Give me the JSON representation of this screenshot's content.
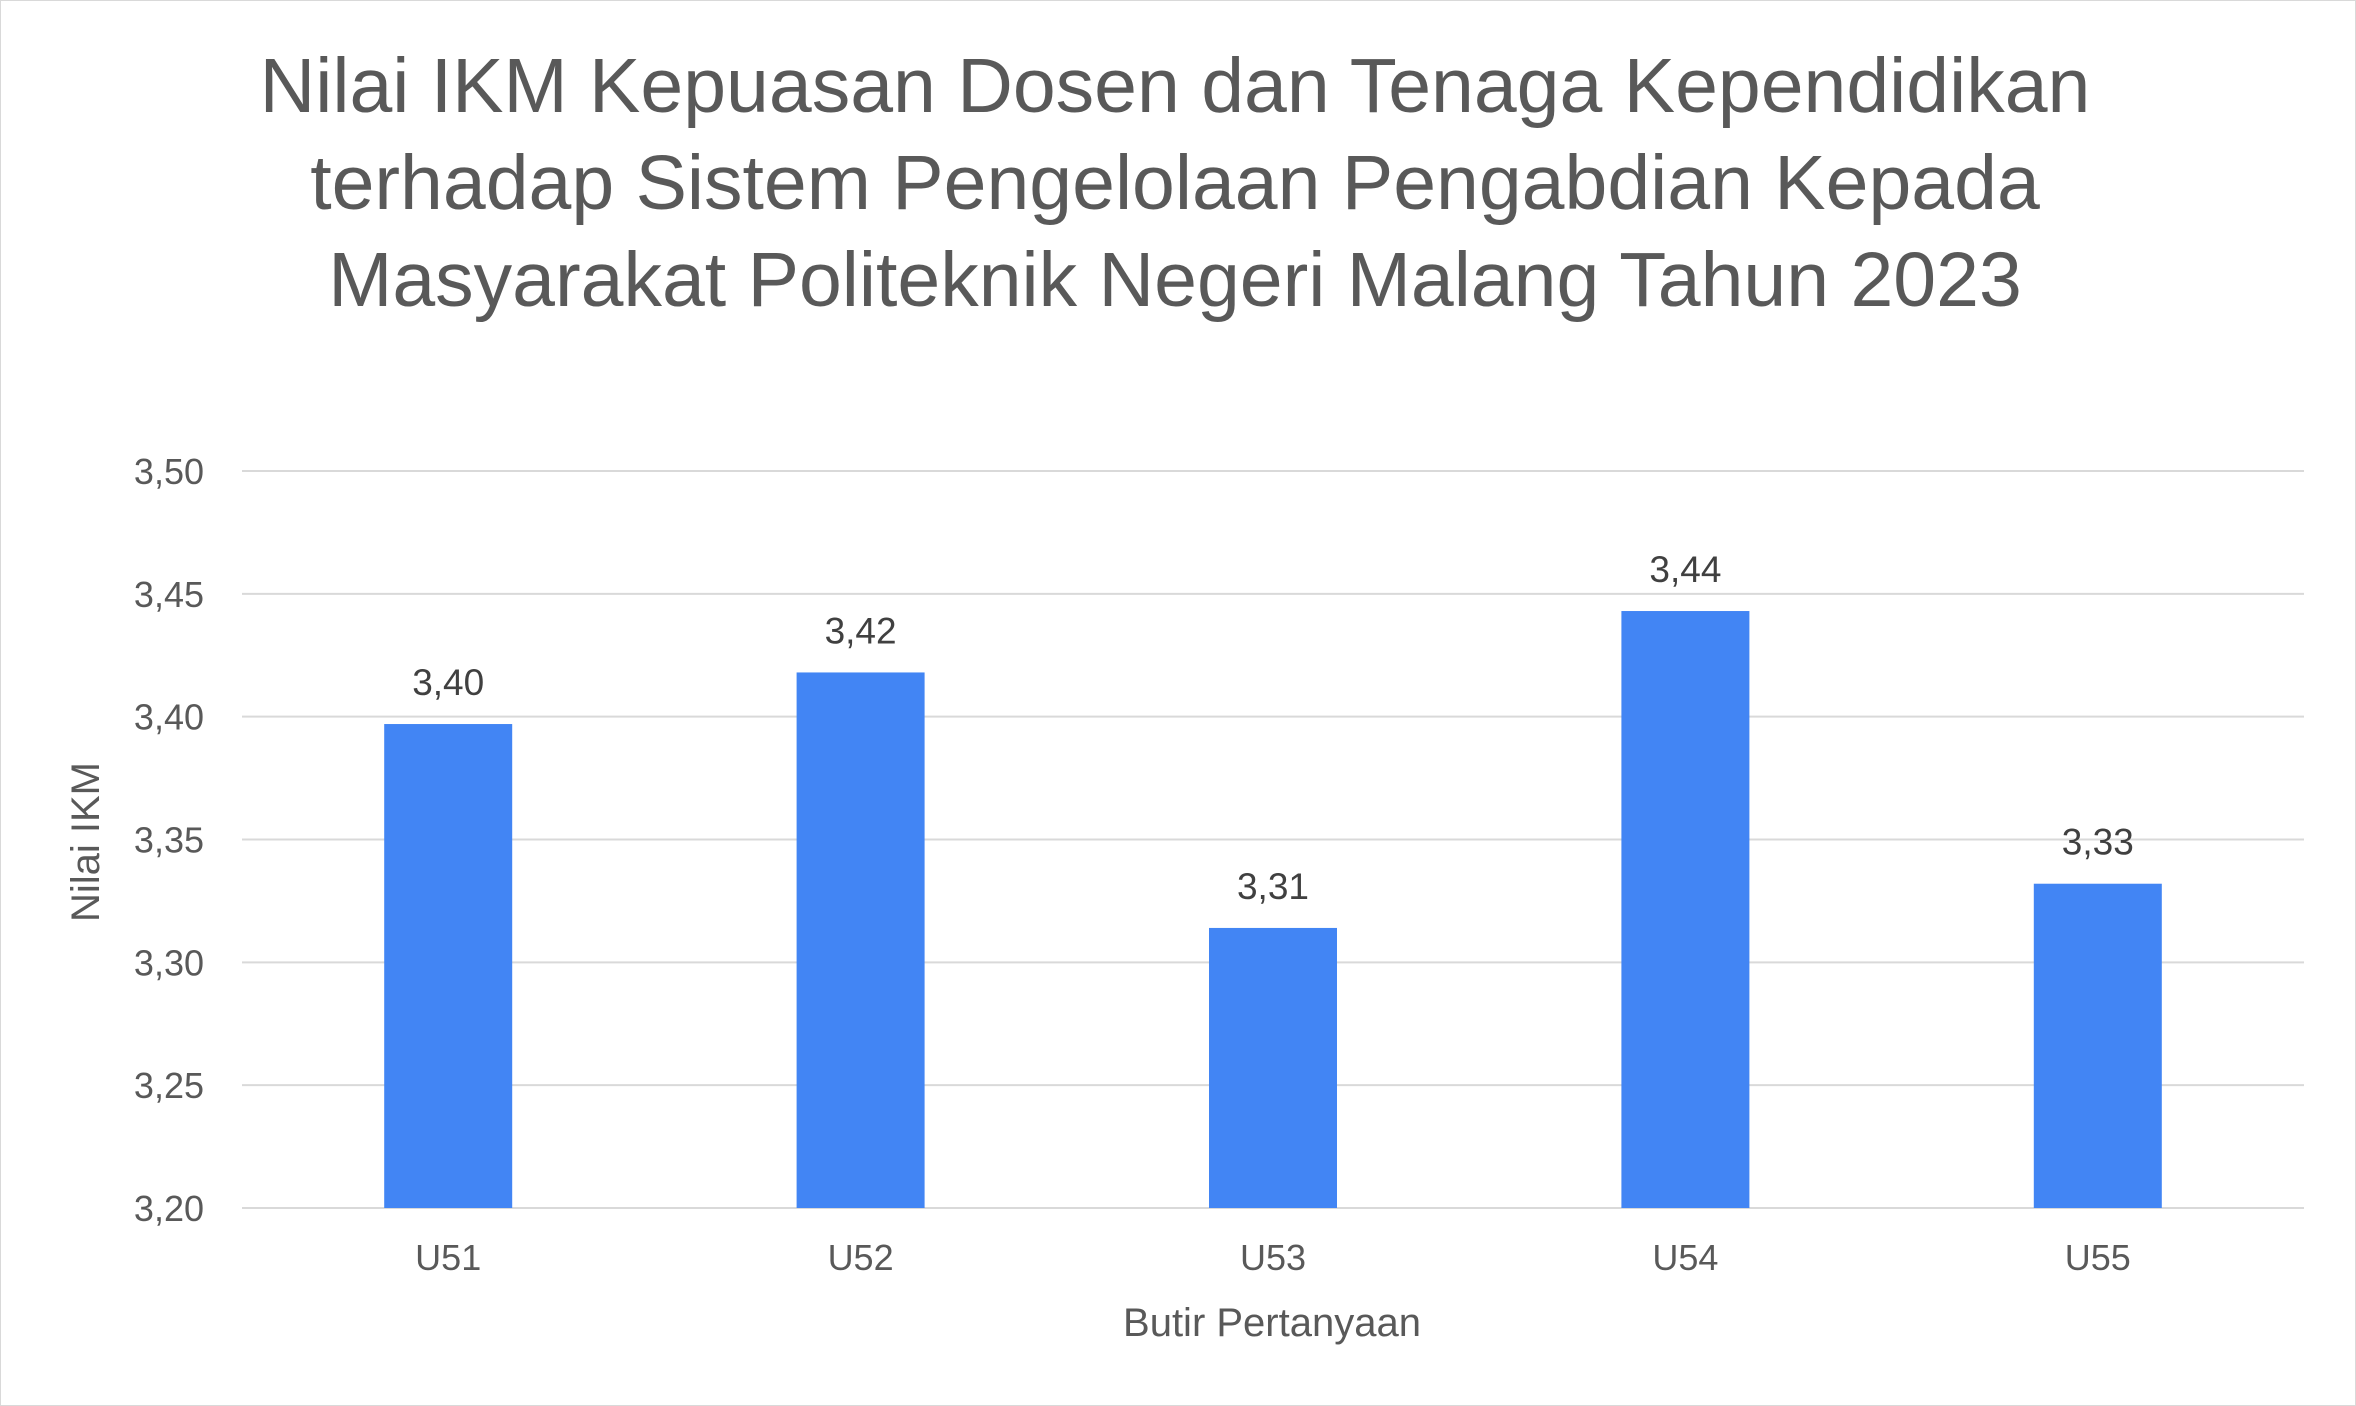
{
  "chart_data": {
    "type": "bar",
    "title": "Nilai IKM Kepuasan Dosen dan Tenaga Kependidikan terhadap Sistem Pengelolaan Pengabdian Kepada Masyarakat Politeknik Negeri Malang Tahun 2023",
    "xlabel": "Butir Pertanyaan",
    "ylabel": "Nilai IKM",
    "categories": [
      "U51",
      "U52",
      "U53",
      "U54",
      "U55"
    ],
    "values": [
      3.397,
      3.418,
      3.314,
      3.443,
      3.332
    ],
    "data_labels": [
      "3,40",
      "3,42",
      "3,31",
      "3,44",
      "3,33"
    ],
    "ylim": [
      3.2,
      3.5
    ],
    "yticks": [
      3.2,
      3.25,
      3.3,
      3.35,
      3.4,
      3.45,
      3.5
    ],
    "ytick_labels": [
      "3,20",
      "3,25",
      "3,30",
      "3,35",
      "3,40",
      "3,45",
      "3,50"
    ],
    "grid": true,
    "legend": "none",
    "bar_color": "#4285f4",
    "grid_color": "#d9d9d9"
  }
}
